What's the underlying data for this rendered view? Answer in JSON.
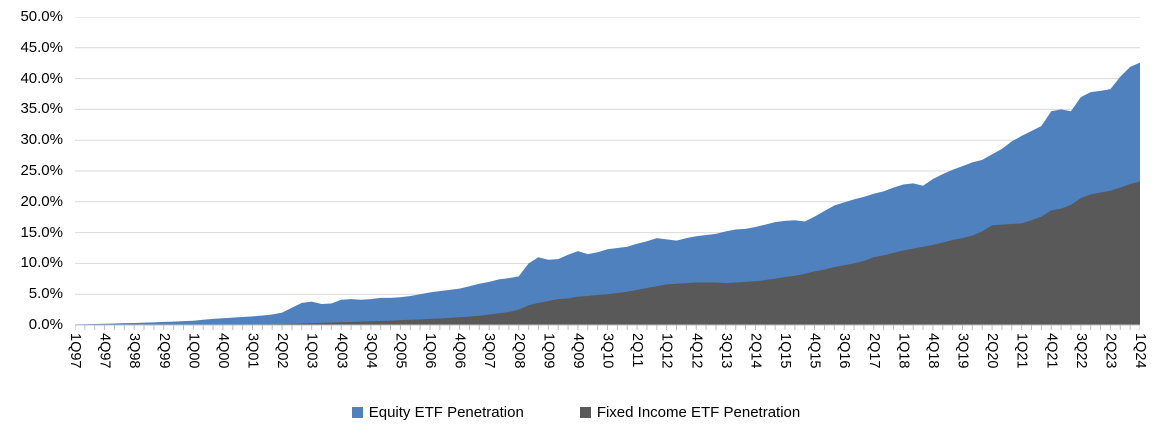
{
  "chart_data": {
    "type": "area",
    "title": "",
    "grid": true,
    "legend_position": "bottom",
    "ylim": [
      0,
      50
    ],
    "y_tick_step": 5,
    "y_tick_labels": [
      "0.0%",
      "5.0%",
      "10.0%",
      "15.0%",
      "20.0%",
      "25.0%",
      "30.0%",
      "35.0%",
      "40.0%",
      "45.0%",
      "50.0%"
    ],
    "x_start": "1Q97",
    "x_end": "1Q24",
    "x_tick_label_interval": 3,
    "x_tick_labels": [
      "1Q97",
      "4Q97",
      "3Q98",
      "2Q99",
      "1Q00",
      "4Q00",
      "3Q01",
      "2Q02",
      "1Q03",
      "4Q03",
      "3Q04",
      "2Q05",
      "1Q06",
      "4Q06",
      "3Q07",
      "2Q08",
      "1Q09",
      "4Q09",
      "3Q10",
      "2Q11",
      "1Q12",
      "4Q12",
      "3Q13",
      "2Q14",
      "1Q15",
      "4Q15",
      "3Q16",
      "2Q17",
      "1Q18",
      "4Q18",
      "3Q19",
      "2Q20",
      "1Q21",
      "4Q21",
      "3Q22",
      "2Q23",
      "1Q24"
    ],
    "colors": {
      "equity": "#4E81BD",
      "fixed_income": "#595959",
      "gridline": "#D9D9D9",
      "axis": "#BFBFBF",
      "text": "#000000"
    },
    "series": [
      {
        "name": "Equity ETF Penetration",
        "color": "#4E81BD",
        "unit": "%",
        "values": [
          0.1,
          0.13,
          0.16,
          0.2,
          0.25,
          0.3,
          0.33,
          0.38,
          0.42,
          0.5,
          0.55,
          0.62,
          0.7,
          0.85,
          1.0,
          1.1,
          1.2,
          1.3,
          1.4,
          1.55,
          1.7,
          2.0,
          2.8,
          3.6,
          3.8,
          3.4,
          3.5,
          4.1,
          4.2,
          4.1,
          4.2,
          4.4,
          4.4,
          4.5,
          4.7,
          5.0,
          5.3,
          5.5,
          5.7,
          5.9,
          6.3,
          6.7,
          7.0,
          7.4,
          7.6,
          7.9,
          10.0,
          11.0,
          10.6,
          10.7,
          11.4,
          12.0,
          11.5,
          11.8,
          12.3,
          12.5,
          12.7,
          13.2,
          13.6,
          14.1,
          13.9,
          13.7,
          14.1,
          14.4,
          14.6,
          14.8,
          15.2,
          15.5,
          15.6,
          15.9,
          16.3,
          16.7,
          16.9,
          17.0,
          16.8,
          17.6,
          18.5,
          19.4,
          19.9,
          20.4,
          20.8,
          21.3,
          21.7,
          22.3,
          22.8,
          23.0,
          22.6,
          23.7,
          24.5,
          25.2,
          25.8,
          26.4,
          26.8,
          27.7,
          28.6,
          29.8,
          30.7,
          31.5,
          32.3,
          34.7,
          35.0,
          34.7,
          37.0,
          37.8,
          38.0,
          38.3,
          40.3,
          41.9,
          42.6
        ]
      },
      {
        "name": "Fixed Income ETF Penetration",
        "color": "#595959",
        "unit": "%",
        "values": [
          0,
          0,
          0,
          0,
          0,
          0,
          0,
          0,
          0,
          0,
          0,
          0,
          0,
          0,
          0,
          0,
          0,
          0,
          0.05,
          0.1,
          0.1,
          0.15,
          0.2,
          0.25,
          0.3,
          0.35,
          0.4,
          0.45,
          0.5,
          0.55,
          0.6,
          0.65,
          0.7,
          0.8,
          0.85,
          0.9,
          1.0,
          1.05,
          1.15,
          1.25,
          1.35,
          1.5,
          1.7,
          1.9,
          2.1,
          2.5,
          3.2,
          3.6,
          3.9,
          4.2,
          4.3,
          4.6,
          4.7,
          4.9,
          5.0,
          5.2,
          5.4,
          5.7,
          6.0,
          6.3,
          6.6,
          6.7,
          6.8,
          6.9,
          6.9,
          6.9,
          6.8,
          6.9,
          7.0,
          7.1,
          7.3,
          7.5,
          7.8,
          8.0,
          8.3,
          8.7,
          9.0,
          9.4,
          9.7,
          10.0,
          10.4,
          11.0,
          11.3,
          11.7,
          12.1,
          12.4,
          12.7,
          13.0,
          13.4,
          13.8,
          14.1,
          14.5,
          15.2,
          16.2,
          16.3,
          16.4,
          16.5,
          17.0,
          17.6,
          18.6,
          18.9,
          19.5,
          20.6,
          21.2,
          21.5,
          21.8,
          22.3,
          22.9,
          23.3
        ]
      }
    ]
  }
}
